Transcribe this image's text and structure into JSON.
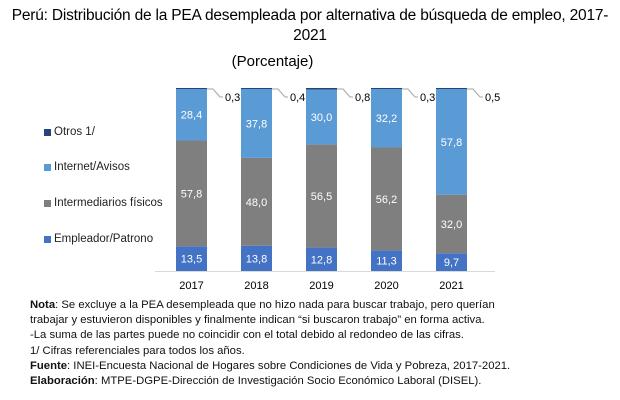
{
  "chart_data": {
    "type": "bar",
    "stacked": true,
    "title_line1": "Perú: Distribución de la PEA desempleada por alternativa de búsqueda de empleo, 2017-",
    "title_line2": "2021",
    "subtitle": "(Porcentaje)",
    "categories": [
      "2017",
      "2018",
      "2019",
      "2020",
      "2021"
    ],
    "series": [
      {
        "name": "Empleador/Patrono",
        "color": "#4472c4",
        "values": [
          13.5,
          13.8,
          12.8,
          11.3,
          9.7
        ],
        "labels": [
          "13,5",
          "13,8",
          "12,8",
          "11,3",
          "9,7"
        ]
      },
      {
        "name": "Intermediarios físicos",
        "color": "#7f7f7f",
        "values": [
          57.8,
          48.0,
          56.5,
          56.2,
          32.0
        ],
        "labels": [
          "57,8",
          "48,0",
          "56,5",
          "56,2",
          "32,0"
        ]
      },
      {
        "name": "Internet/Avisos",
        "color": "#5b9bd5",
        "values": [
          28.4,
          37.8,
          30.0,
          32.2,
          57.8
        ],
        "labels": [
          "28,4",
          "37,8",
          "30,0",
          "32,2",
          "57,8"
        ]
      },
      {
        "name": "Otros 1/",
        "color": "#264478",
        "values": [
          0.3,
          0.4,
          0.8,
          0.3,
          0.5
        ],
        "labels": [
          "0,3",
          "0,4",
          "0,8",
          "0,3",
          "0,5"
        ]
      }
    ],
    "legend_order": [
      "Otros 1/",
      "Internet/Avisos",
      "Intermediarios físicos",
      "Empleador/Patrono"
    ],
    "legend_position": "left",
    "ylim": [
      0,
      100
    ],
    "grid": false,
    "xlabel": "",
    "ylabel": ""
  },
  "notes": {
    "nota_label": "Nota",
    "nota_text": ": Se excluye a la PEA desempleada que no hizo nada para buscar trabajo, pero querían",
    "nota_line2": "trabajar y estuvieron disponibles y finalmente indican “si buscaron trabajo” en forma activa.",
    "line3": "-La suma de las partes puede no coincidir con el total debido al redondeo de las cifras.",
    "line4": "1/ Cifras referenciales para todos los años.",
    "fuente_label": "Fuente",
    "fuente_text": ": INEI-Encuesta Nacional de Hogares sobre Condiciones de Vida y Pobreza, 2017-2021.",
    "elaboracion_label": "Elaboración",
    "elaboracion_text": ": MTPE-DGPE-Dirección de Investigación Socio Económico Laboral (DISEL)."
  }
}
